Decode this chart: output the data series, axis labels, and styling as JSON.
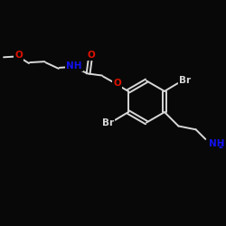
{
  "background": "#080808",
  "bond_color": "#d8d8d8",
  "atom_colors": {
    "O": "#dd1100",
    "N": "#1111ee",
    "Br": "#d8d8d8",
    "C": "#d8d8d8"
  },
  "bond_width": 1.4,
  "font_size_atom": 7.0,
  "font_size_sub": 5.5
}
